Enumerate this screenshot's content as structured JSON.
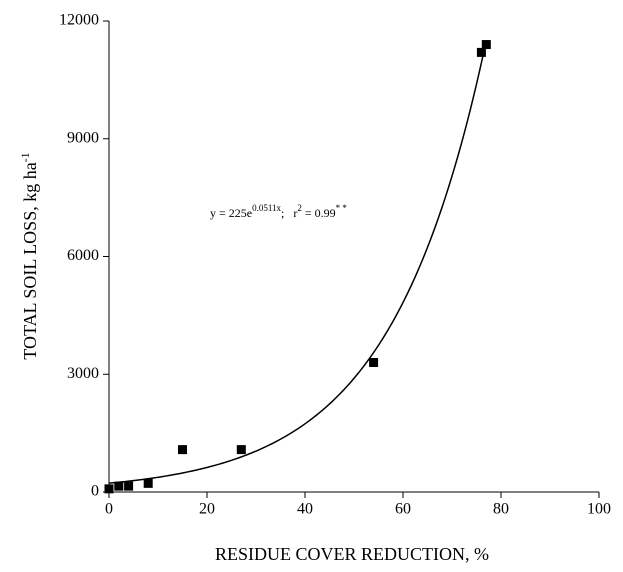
{
  "chart_data": {
    "type": "scatter",
    "x_label": "RESIDUE COVER REDUCTION, %",
    "y_label": {
      "text": "TOTAL SOIL LOSS, kg ha",
      "sup": "-1"
    },
    "annotation": [
      {
        "text": "y = 225e",
        "sup": false
      },
      {
        "text": "0.0511x",
        "sup": true
      },
      {
        "text": ";   r",
        "sup": false
      },
      {
        "text": "2",
        "sup": true
      },
      {
        "text": " = 0.99",
        "sup": false
      },
      {
        "text": "* *",
        "sup": true
      }
    ],
    "x": [
      0,
      2,
      4,
      8,
      15,
      27,
      54,
      76,
      77
    ],
    "values": [
      80,
      150,
      150,
      220,
      1080,
      1080,
      3300,
      11200,
      11400
    ],
    "color": "#000000",
    "trendline": {
      "form": "exponential",
      "a": 225,
      "b": 0.0511,
      "x_range": [
        0,
        77
      ],
      "color": "#000000"
    },
    "xlim": [
      0,
      100
    ],
    "xticks": [
      0,
      20,
      40,
      60,
      80,
      100
    ],
    "ylim": [
      0,
      12000
    ],
    "yticks": [
      0,
      3000,
      6000,
      9000,
      12000
    ],
    "grid": false
  }
}
